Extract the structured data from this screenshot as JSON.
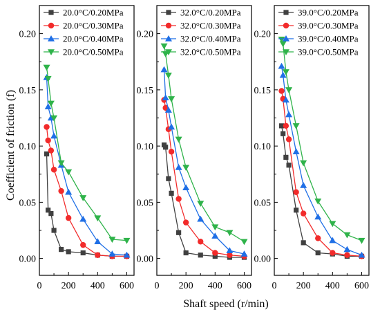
{
  "chart_data": {
    "type": "line",
    "xlabel": "Shaft speed (r/min)",
    "ylabel": "Coefficient of friction (f)",
    "xlim": [
      0,
      650
    ],
    "ylim": [
      -0.015,
      0.225
    ],
    "xticks": [
      0,
      200,
      400,
      600
    ],
    "xtick_labels": [
      "0",
      "200",
      "400",
      "600"
    ],
    "yticks": [
      0.0,
      0.05,
      0.1,
      0.15,
      0.2
    ],
    "ytick_labels": [
      "0.00",
      "0.05",
      "0.10",
      "0.15",
      "0.20"
    ],
    "legend_position": "top",
    "x": [
      50,
      60,
      80,
      100,
      150,
      200,
      300,
      400,
      500,
      600
    ],
    "colors": [
      "#404040",
      "#f22b2b",
      "#1f6fe6",
      "#2fb34a"
    ],
    "markers": [
      "square",
      "circle",
      "triangle-up",
      "triangle-down"
    ],
    "panels": [
      {
        "series": [
          {
            "name": "20.0°C/0.20MPa",
            "values": [
              0.093,
              0.043,
              0.04,
              0.025,
              0.008,
              0.006,
              0.005,
              0.003,
              0.002,
              0.002
            ]
          },
          {
            "name": "20.0°C/0.30MPa",
            "values": [
              0.117,
              0.105,
              0.096,
              0.079,
              0.06,
              0.036,
              0.012,
              0.003,
              0.002,
              0.002
            ]
          },
          {
            "name": "20.0°C/0.40MPa",
            "values": [
              0.161,
              0.135,
              0.125,
              0.109,
              0.083,
              0.059,
              0.035,
              0.015,
              0.004,
              0.003
            ]
          },
          {
            "name": "20.0°C/0.50MPa",
            "values": [
              0.17,
              0.16,
              0.138,
              0.125,
              0.085,
              0.077,
              0.054,
              0.036,
              0.017,
              0.016
            ]
          }
        ]
      },
      {
        "series": [
          {
            "name": "32.0°C/0.20MPa",
            "values": [
              0.101,
              0.099,
              0.071,
              0.058,
              0.023,
              0.005,
              0.003,
              0.002,
              0.001,
              0.001
            ]
          },
          {
            "name": "32.0°C/0.30MPa",
            "values": [
              0.141,
              0.134,
              0.115,
              0.095,
              0.053,
              0.032,
              0.015,
              0.005,
              0.003,
              0.002
            ]
          },
          {
            "name": "32.0°C/0.40MPa",
            "values": [
              0.168,
              0.143,
              0.132,
              0.117,
              0.081,
              0.063,
              0.035,
              0.02,
              0.007,
              0.004
            ]
          },
          {
            "name": "32.0°C/0.50MPa",
            "values": [
              0.189,
              0.182,
              0.163,
              0.142,
              0.106,
              0.081,
              0.049,
              0.028,
              0.023,
              0.015
            ]
          }
        ]
      },
      {
        "series": [
          {
            "name": "39.0°C/0.20MPa",
            "values": [
              0.118,
              0.111,
              0.09,
              0.083,
              0.043,
              0.014,
              0.005,
              0.004,
              0.002,
              0.002
            ]
          },
          {
            "name": "39.0°C/0.30MPa",
            "values": [
              0.149,
              0.142,
              0.118,
              0.106,
              0.059,
              0.04,
              0.018,
              0.005,
              0.003,
              0.002
            ]
          },
          {
            "name": "39.0°C/0.40MPa",
            "values": [
              0.171,
              0.163,
              0.141,
              0.128,
              0.095,
              0.065,
              0.037,
              0.016,
              0.008,
              0.003
            ]
          },
          {
            "name": "39.0°C/0.50MPa",
            "values": [
              0.195,
              0.191,
              0.166,
              0.15,
              0.118,
              0.085,
              0.051,
              0.031,
              0.021,
              0.016
            ]
          }
        ]
      }
    ]
  }
}
